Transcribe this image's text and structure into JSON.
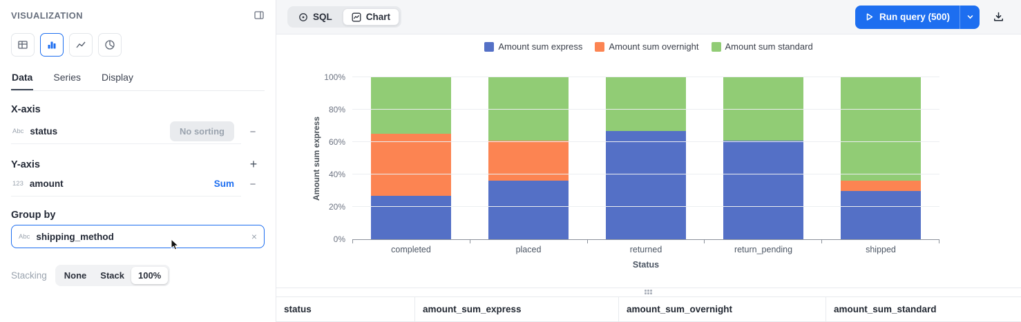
{
  "colors": {
    "accent_blue": "#1d6ef0",
    "bar_blue": "#5470c6",
    "bar_orange": "#fc8452",
    "bar_green": "#91cc75"
  },
  "sidebar": {
    "title": "VISUALIZATION",
    "collapse_icon": "panel-right-icon",
    "chart_types": [
      {
        "name": "table",
        "selected": false
      },
      {
        "name": "bar",
        "selected": true
      },
      {
        "name": "line",
        "selected": false
      },
      {
        "name": "pie",
        "selected": false
      }
    ],
    "tabs": [
      {
        "label": "Data",
        "active": true
      },
      {
        "label": "Series",
        "active": false
      },
      {
        "label": "Display",
        "active": false
      }
    ],
    "x_axis": {
      "heading": "X-axis",
      "field_type": "Abc",
      "field": "status",
      "sort_label": "No sorting",
      "remove_label": "−"
    },
    "y_axis": {
      "heading": "Y-axis",
      "add_label": "+",
      "field_type": "123",
      "field": "amount",
      "aggregate": "Sum",
      "remove_label": "−"
    },
    "group_by": {
      "heading": "Group by",
      "field_type": "Abc",
      "field": "shipping_method",
      "clear_label": "×"
    },
    "stacking": {
      "label": "Stacking",
      "options": [
        "None",
        "Stack",
        "100%"
      ],
      "selected": "100%"
    }
  },
  "toolbar": {
    "view_toggle": [
      {
        "label": "SQL",
        "icon": "circle-dot-icon",
        "active": false
      },
      {
        "label": "Chart",
        "icon": "line-chart-icon",
        "active": true
      }
    ],
    "run_button": {
      "label": "Run query (500)",
      "icon": "play-icon",
      "more_icon": "chevron-down-icon"
    },
    "download_icon": "download-icon"
  },
  "chart_data": {
    "type": "bar",
    "stacked": "100%",
    "categories": [
      "completed",
      "placed",
      "returned",
      "return_pending",
      "shipped"
    ],
    "series": [
      {
        "name": "Amount sum express",
        "color": "#5470c6",
        "values": [
          27,
          36,
          67,
          61,
          30
        ]
      },
      {
        "name": "Amount sum overnight",
        "color": "#fc8452",
        "values": [
          38,
          25,
          0,
          0,
          6
        ]
      },
      {
        "name": "Amount sum standard",
        "color": "#91cc75",
        "values": [
          35,
          39,
          33,
          39,
          64
        ]
      }
    ],
    "xlabel": "Status",
    "ylabel": "Amount sum express",
    "y_ticks": [
      "0%",
      "20%",
      "40%",
      "60%",
      "80%",
      "100%"
    ],
    "ylim": [
      0,
      100
    ],
    "grid": true,
    "legend_position": "top"
  },
  "table": {
    "headers": [
      "status",
      "amount_sum_express",
      "amount_sum_overnight",
      "amount_sum_standard"
    ]
  }
}
